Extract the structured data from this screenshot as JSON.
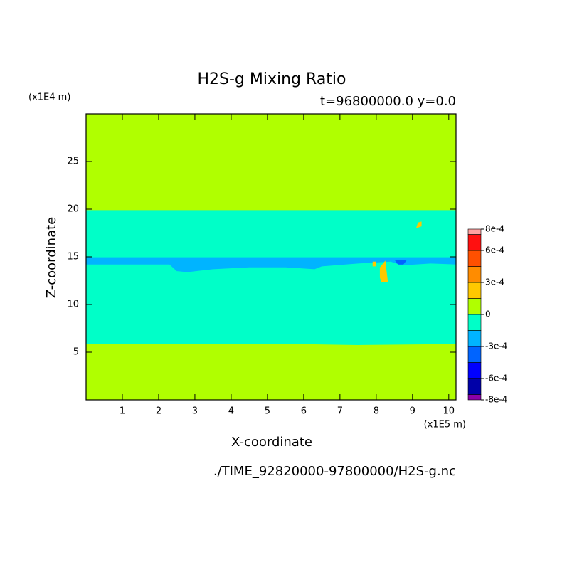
{
  "chart_data": {
    "type": "contour",
    "title": "H2S-g Mixing Ratio",
    "subtitle": "t=96800000.0 y=0.0",
    "x_label": "X-coordinate",
    "y_label": "Z-coordinate",
    "x_unit": "(x1E5 m)",
    "y_unit": "(x1E4 m)",
    "footer": "./TIME_92820000-97800000/H2S-g.nc",
    "xlim": [
      0,
      10.2
    ],
    "ylim": [
      0,
      30
    ],
    "xticks": [
      1,
      2,
      3,
      4,
      5,
      6,
      7,
      8,
      9,
      10
    ],
    "yticks": [
      5,
      10,
      15,
      20,
      25
    ],
    "levels": [
      -0.0008,
      -0.00075,
      -0.0006,
      -0.00045,
      -0.0003,
      -0.00015,
      0,
      0.00015,
      0.0003,
      0.00045,
      0.0006,
      0.00075,
      0.0008
    ],
    "colors": [
      "#8a00a8",
      "#0000a8",
      "#0000ff",
      "#0064ff",
      "#00b4ff",
      "#00ffc8",
      "#b0ff00",
      "#ffc800",
      "#ff8c00",
      "#ff5000",
      "#ff1010",
      "#ffa0a0"
    ],
    "colorbar_ticks": [
      {
        "value": 0.0008,
        "label": "8e-4"
      },
      {
        "value": 0.0006,
        "label": "6e-4"
      },
      {
        "value": 0.0003,
        "label": "3e-4"
      },
      0,
      {
        "value": -0.0003,
        "label": "-3e-4"
      },
      {
        "value": -0.0006,
        "label": "-6e-4"
      },
      {
        "value": -0.0008,
        "label": "-8e-4"
      }
    ],
    "regions": [
      {
        "value": 5e-05,
        "polygon": [
          [
            0,
            0
          ],
          [
            10.2,
            0
          ],
          [
            10.2,
            30
          ],
          [
            0,
            30
          ]
        ]
      },
      {
        "value": -5e-05,
        "polygon": [
          [
            0,
            5.85
          ],
          [
            5,
            5.9
          ],
          [
            7.5,
            5.75
          ],
          [
            10.2,
            5.85
          ],
          [
            10.2,
            19.9
          ],
          [
            0,
            19.9
          ]
        ]
      },
      {
        "value": -0.0002,
        "polygon": [
          [
            0,
            14.95
          ],
          [
            10.2,
            14.95
          ],
          [
            10.2,
            14.2
          ],
          [
            9.5,
            14.3
          ],
          [
            8.7,
            14.1
          ],
          [
            8.4,
            14.5
          ],
          [
            7.5,
            14.3
          ],
          [
            6.5,
            14.0
          ],
          [
            6.3,
            13.7
          ],
          [
            5.5,
            13.9
          ],
          [
            4.5,
            13.9
          ],
          [
            3.5,
            13.7
          ],
          [
            2.8,
            13.4
          ],
          [
            2.5,
            13.5
          ],
          [
            2.3,
            14.2
          ],
          [
            0,
            14.2
          ]
        ]
      },
      {
        "value": -0.00035,
        "polygon": [
          [
            8.5,
            14.7
          ],
          [
            8.85,
            14.7
          ],
          [
            8.75,
            14.2
          ],
          [
            8.6,
            14.2
          ]
        ]
      },
      {
        "value": 0.0002,
        "polygon": [
          [
            8.1,
            13.9
          ],
          [
            8.25,
            14.6
          ],
          [
            8.32,
            12.4
          ],
          [
            8.15,
            12.3
          ],
          [
            8.1,
            12.8
          ]
        ]
      },
      {
        "value": 0.0002,
        "polygon": [
          [
            7.9,
            14.5
          ],
          [
            8.0,
            14.5
          ],
          [
            8.0,
            14.0
          ],
          [
            7.9,
            14.0
          ]
        ]
      },
      {
        "value": 0.0002,
        "polygon": [
          [
            9.1,
            18.0
          ],
          [
            9.25,
            18.2
          ],
          [
            9.25,
            18.7
          ],
          [
            9.15,
            18.6
          ]
        ]
      }
    ]
  }
}
